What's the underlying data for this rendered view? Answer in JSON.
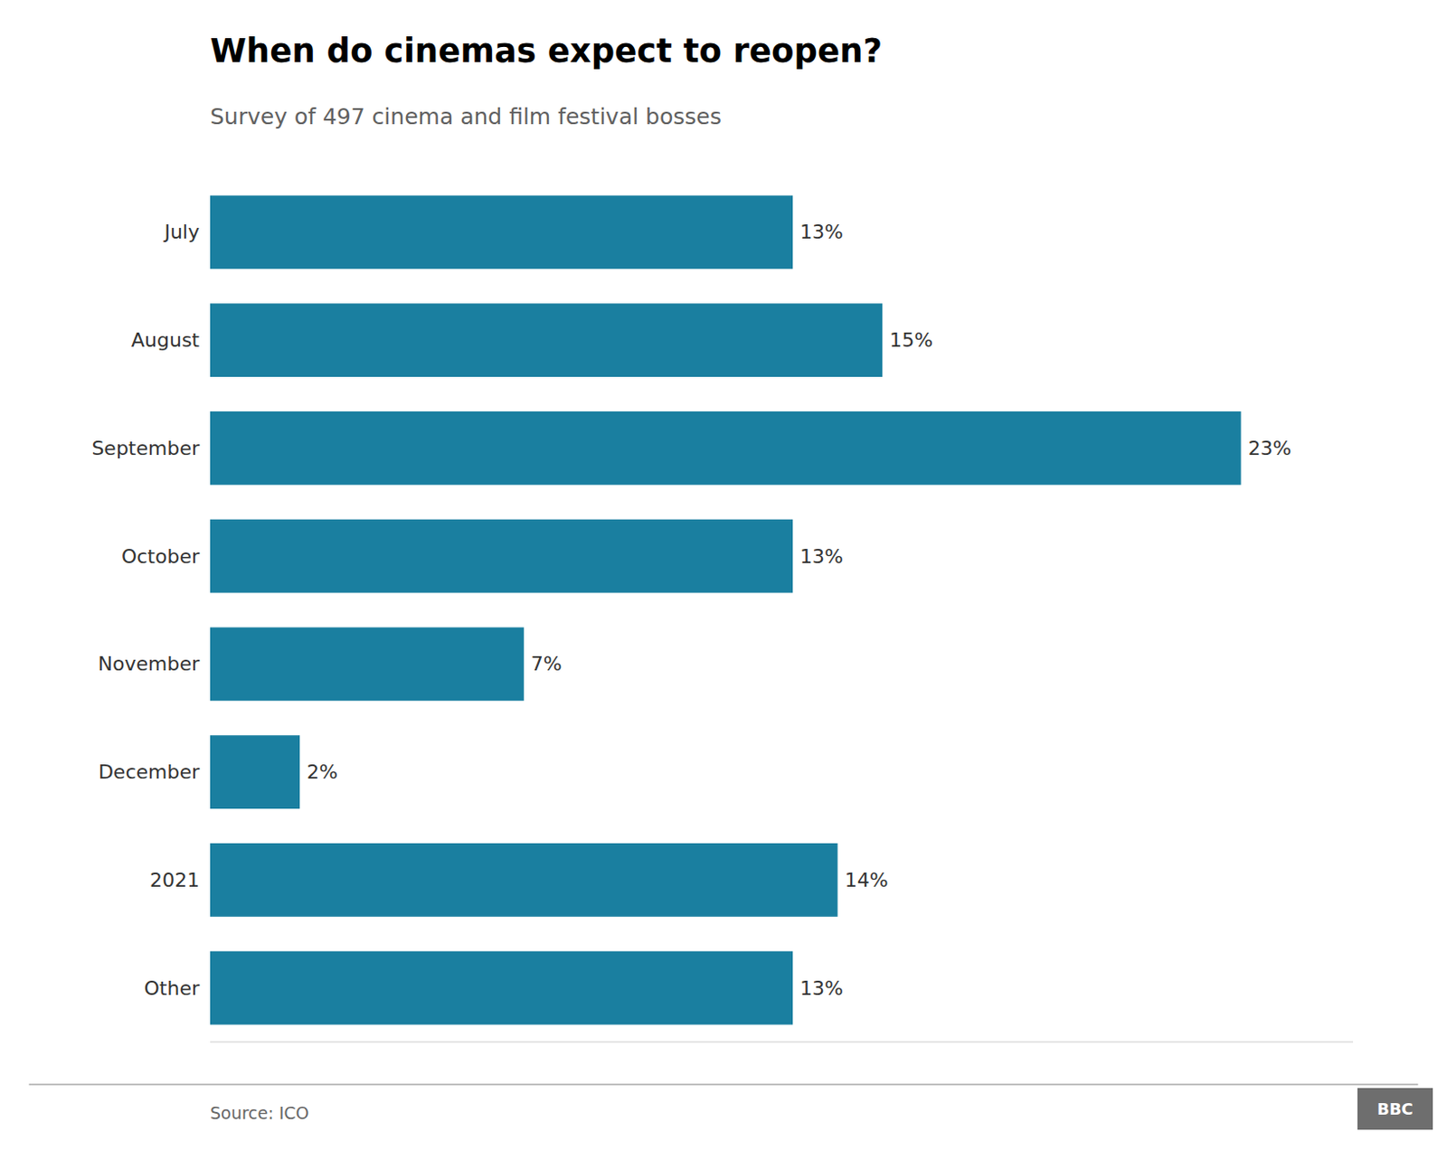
{
  "chart_data": {
    "type": "bar",
    "orientation": "horizontal",
    "title": "When do cinemas expect to reopen?",
    "subtitle": "Survey of 497 cinema and film festival bosses",
    "source": "Source: ICO",
    "annotations": [
      "BBC"
    ],
    "categories": [
      "July",
      "August",
      "September",
      "October",
      "November",
      "December",
      "2021",
      "Other"
    ],
    "values": [
      13,
      15,
      23,
      13,
      7,
      2,
      14,
      13
    ],
    "value_labels": [
      "13%",
      "15%",
      "23%",
      "13%",
      "7%",
      "2%",
      "14%",
      "13%"
    ],
    "data_labels": true,
    "color": "#1a7fa0",
    "xlim": [
      0,
      25.5
    ],
    "xticks": [],
    "tick_labels": "y",
    "grid": false
  }
}
